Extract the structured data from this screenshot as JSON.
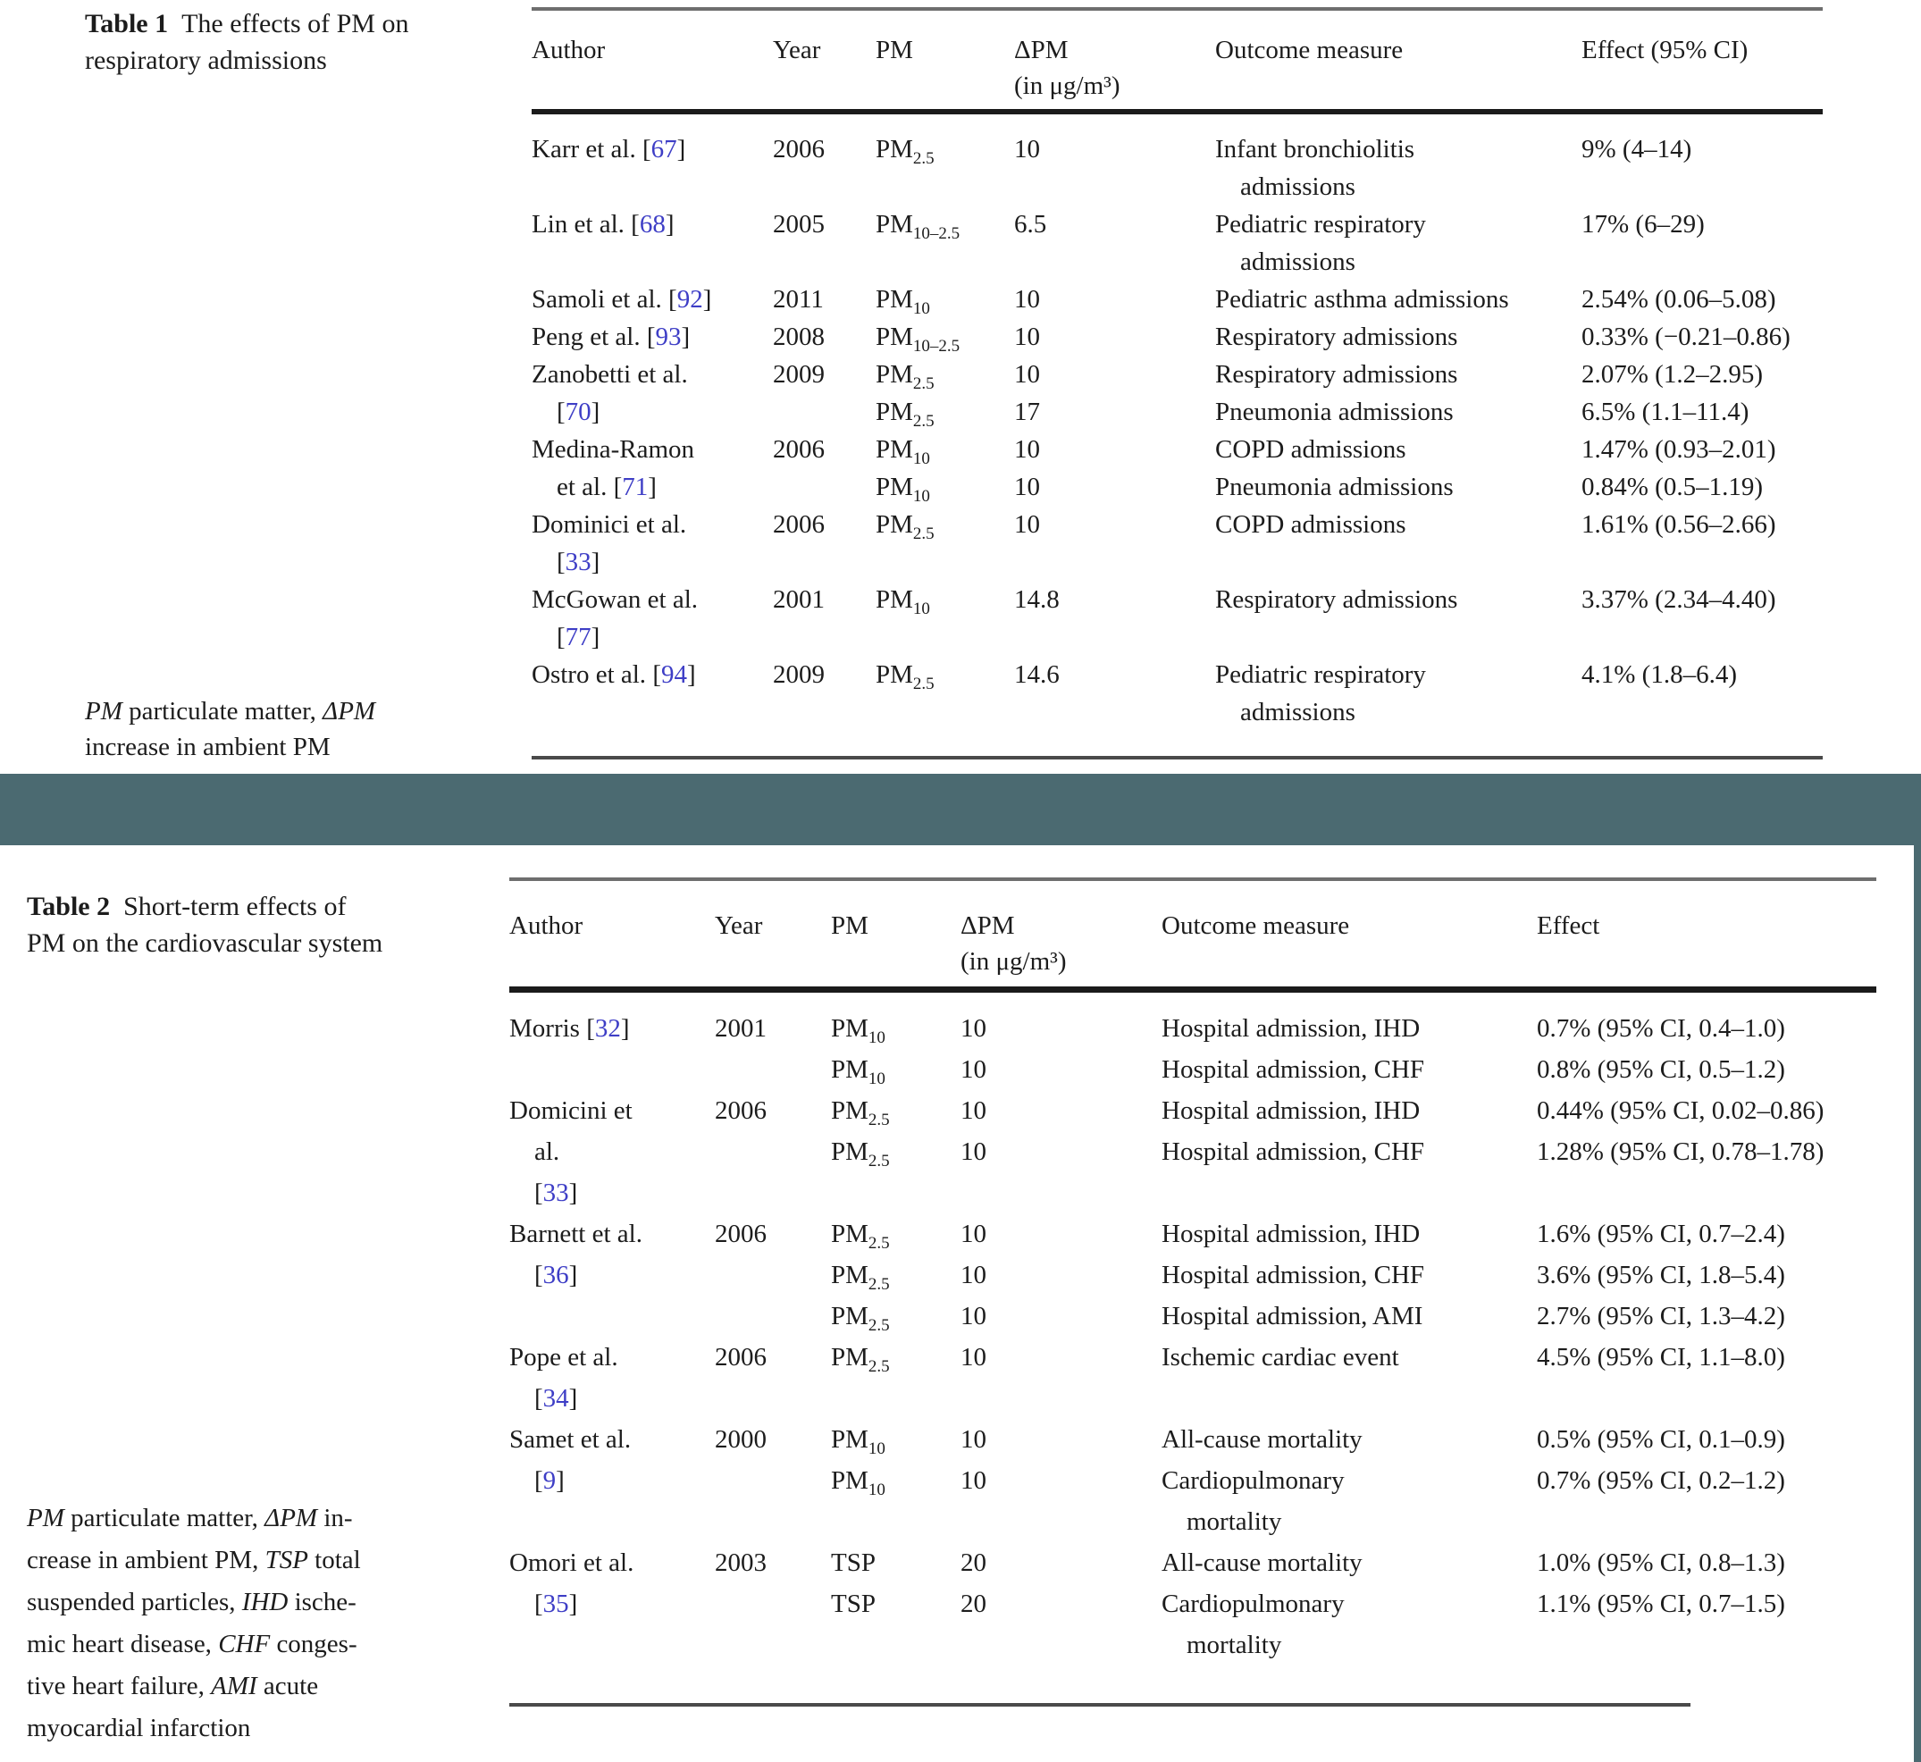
{
  "colors": {
    "accent_teal": "#4b6a71",
    "ref_blue": "#3e3ec6",
    "rule_gray": "#6e6e6e",
    "rule_dark": "#1b1b1b",
    "rule_mid": "#4a4a4a"
  },
  "table1": {
    "caption": {
      "label": "Table 1",
      "lines": [
        "The effects of PM on",
        "respiratory admissions"
      ]
    },
    "header": {
      "author": "Author",
      "year": "Year",
      "pm": "PM",
      "dpm_line1": "ΔPM",
      "dpm_line2": "(in μg/m³)",
      "outcome": "Outcome measure",
      "effect": "Effect (95% CI)"
    },
    "rows": [
      [
        {
          "t": "Karr et al. ",
          "ref": "67"
        },
        {
          "t": "2006"
        },
        {
          "t": "PM",
          "sub": "2.5"
        },
        {
          "t": "10"
        },
        {
          "t": "Infant bronchiolitis"
        },
        {
          "t": "9% (4–14)"
        }
      ],
      [
        null,
        null,
        null,
        null,
        {
          "t": "admissions",
          "ind": 1
        },
        null
      ],
      [
        {
          "t": "Lin et al. ",
          "ref": "68"
        },
        {
          "t": "2005"
        },
        {
          "t": "PM",
          "sub": "10–2.5"
        },
        {
          "t": "6.5"
        },
        {
          "t": "Pediatric respiratory"
        },
        {
          "t": "17% (6–29)"
        }
      ],
      [
        null,
        null,
        null,
        null,
        {
          "t": "admissions",
          "ind": 1
        },
        null
      ],
      [
        {
          "t": "Samoli et al. ",
          "ref": "92"
        },
        {
          "t": "2011"
        },
        {
          "t": "PM",
          "sub": "10"
        },
        {
          "t": "10"
        },
        {
          "t": "Pediatric asthma admissions"
        },
        {
          "t": "2.54% (0.06–5.08)"
        }
      ],
      [
        {
          "t": "Peng et al. ",
          "ref": "93"
        },
        {
          "t": "2008"
        },
        {
          "t": "PM",
          "sub": "10–2.5"
        },
        {
          "t": "10"
        },
        {
          "t": "Respiratory admissions"
        },
        {
          "t": "0.33% (−0.21–0.86)"
        }
      ],
      [
        {
          "t": "Zanobetti et al."
        },
        {
          "t": "2009"
        },
        {
          "t": "PM",
          "sub": "2.5"
        },
        {
          "t": "10"
        },
        {
          "t": "Respiratory admissions"
        },
        {
          "t": "2.07% (1.2–2.95)"
        }
      ],
      [
        {
          "ref": "70",
          "ind": 1
        },
        null,
        {
          "t": "PM",
          "sub": "2.5"
        },
        {
          "t": "17"
        },
        {
          "t": "Pneumonia admissions"
        },
        {
          "t": "6.5% (1.1–11.4)"
        }
      ],
      [
        {
          "t": "Medina-Ramon"
        },
        {
          "t": "2006"
        },
        {
          "t": "PM",
          "sub": "10"
        },
        {
          "t": "10"
        },
        {
          "t": "COPD admissions"
        },
        {
          "t": "1.47% (0.93–2.01)"
        }
      ],
      [
        {
          "t": "et al. ",
          "ref": "71",
          "ind": 1
        },
        null,
        {
          "t": "PM",
          "sub": "10"
        },
        {
          "t": "10"
        },
        {
          "t": "Pneumonia admissions"
        },
        {
          "t": "0.84% (0.5–1.19)"
        }
      ],
      [
        {
          "t": "Dominici et al."
        },
        {
          "t": "2006"
        },
        {
          "t": "PM",
          "sub": "2.5"
        },
        {
          "t": "10"
        },
        {
          "t": "COPD admissions"
        },
        {
          "t": "1.61% (0.56–2.66)"
        }
      ],
      [
        {
          "ref": "33",
          "ind": 1
        },
        null,
        null,
        null,
        null,
        null
      ],
      [
        {
          "t": "McGowan et al."
        },
        {
          "t": "2001"
        },
        {
          "t": "PM",
          "sub": "10"
        },
        {
          "t": "14.8"
        },
        {
          "t": "Respiratory admissions"
        },
        {
          "t": "3.37% (2.34–4.40)"
        }
      ],
      [
        {
          "ref": "77",
          "ind": 1
        },
        null,
        null,
        null,
        null,
        null
      ],
      [
        {
          "t": "Ostro et al. ",
          "ref": "94"
        },
        {
          "t": "2009"
        },
        {
          "t": "PM",
          "sub": "2.5"
        },
        {
          "t": "14.6"
        },
        {
          "t": "Pediatric respiratory"
        },
        {
          "t": "4.1% (1.8–6.4)"
        }
      ],
      [
        null,
        null,
        null,
        null,
        {
          "t": "admissions",
          "ind": 1
        },
        null
      ]
    ],
    "footnote_lines": [
      [
        {
          "i": 1,
          "t": "PM"
        },
        {
          "t": " particulate matter, "
        },
        {
          "i": 1,
          "t": "ΔPM"
        }
      ],
      [
        {
          "t": "increase in ambient PM"
        }
      ]
    ]
  },
  "table2": {
    "caption": {
      "label": "Table 2",
      "lines": [
        "Short-term effects of",
        "PM on the cardiovascular system"
      ]
    },
    "header": {
      "author": "Author",
      "year": "Year",
      "pm": "PM",
      "dpm_line1": "ΔPM",
      "dpm_line2": "(in μg/m³)",
      "outcome": "Outcome measure",
      "effect": "Effect"
    },
    "rows": [
      [
        {
          "t": "Morris ",
          "ref": "32"
        },
        {
          "t": "2001"
        },
        {
          "t": "PM",
          "sub": "10"
        },
        {
          "t": "10"
        },
        {
          "t": "Hospital admission, IHD"
        },
        {
          "t": "0.7% (95% CI, 0.4–1.0)"
        }
      ],
      [
        null,
        null,
        {
          "t": "PM",
          "sub": "10"
        },
        {
          "t": "10"
        },
        {
          "t": "Hospital admission, CHF"
        },
        {
          "t": "0.8% (95% CI, 0.5–1.2)"
        }
      ],
      [
        {
          "t": "Domicini et"
        },
        {
          "t": "2006"
        },
        {
          "t": "PM",
          "sub": "2.5"
        },
        {
          "t": "10"
        },
        {
          "t": "Hospital admission, IHD"
        },
        {
          "t": "0.44% (95% CI, 0.02–0.86)"
        }
      ],
      [
        {
          "t": "al.",
          "ind": 1
        },
        null,
        {
          "t": "PM",
          "sub": "2.5"
        },
        {
          "t": "10"
        },
        {
          "t": "Hospital admission, CHF"
        },
        {
          "t": "1.28% (95% CI, 0.78–1.78)"
        }
      ],
      [
        {
          "ref": "33",
          "ind": 1
        },
        null,
        null,
        null,
        null,
        null
      ],
      [
        {
          "t": "Barnett et al."
        },
        {
          "t": "2006"
        },
        {
          "t": "PM",
          "sub": "2.5"
        },
        {
          "t": "10"
        },
        {
          "t": "Hospital admission, IHD"
        },
        {
          "t": "1.6% (95% CI, 0.7–2.4)"
        }
      ],
      [
        {
          "ref": "36",
          "ind": 1
        },
        null,
        {
          "t": "PM",
          "sub": "2.5"
        },
        {
          "t": "10"
        },
        {
          "t": "Hospital admission, CHF"
        },
        {
          "t": "3.6% (95% CI, 1.8–5.4)"
        }
      ],
      [
        null,
        null,
        {
          "t": "PM",
          "sub": "2.5"
        },
        {
          "t": "10"
        },
        {
          "t": "Hospital admission, AMI"
        },
        {
          "t": "2.7% (95% CI, 1.3–4.2)"
        }
      ],
      [
        {
          "t": "Pope et al."
        },
        {
          "t": "2006"
        },
        {
          "t": "PM",
          "sub": "2.5"
        },
        {
          "t": "10"
        },
        {
          "t": "Ischemic cardiac event"
        },
        {
          "t": "4.5% (95% CI, 1.1–8.0)"
        }
      ],
      [
        {
          "ref": "34",
          "ind": 1
        },
        null,
        null,
        null,
        null,
        null
      ],
      [
        {
          "t": "Samet et al."
        },
        {
          "t": "2000"
        },
        {
          "t": "PM",
          "sub": "10"
        },
        {
          "t": "10"
        },
        {
          "t": "All-cause mortality"
        },
        {
          "t": "0.5% (95% CI, 0.1–0.9)"
        }
      ],
      [
        {
          "ref": "9",
          "ind": 1
        },
        null,
        {
          "t": "PM",
          "sub": "10"
        },
        {
          "t": "10"
        },
        {
          "t": "Cardiopulmonary"
        },
        {
          "t": "0.7% (95% CI, 0.2–1.2)"
        }
      ],
      [
        null,
        null,
        null,
        null,
        {
          "t": "mortality",
          "ind": 1
        },
        null
      ],
      [
        {
          "t": "Omori et al."
        },
        {
          "t": "2003"
        },
        {
          "t": "TSP"
        },
        {
          "t": "20"
        },
        {
          "t": "All-cause mortality"
        },
        {
          "t": "1.0% (95% CI, 0.8–1.3)"
        }
      ],
      [
        {
          "ref": "35",
          "ind": 1
        },
        null,
        {
          "t": "TSP"
        },
        {
          "t": "20"
        },
        {
          "t": "Cardiopulmonary"
        },
        {
          "t": "1.1% (95% CI, 0.7–1.5)"
        }
      ],
      [
        null,
        null,
        null,
        null,
        {
          "t": "mortality",
          "ind": 1
        },
        null
      ]
    ],
    "footnote_lines": [
      [
        {
          "i": 1,
          "t": "PM"
        },
        {
          "t": " particulate matter, "
        },
        {
          "i": 1,
          "t": "ΔPM"
        },
        {
          "t": " in-"
        }
      ],
      [
        {
          "t": "crease in ambient PM, "
        },
        {
          "i": 1,
          "t": "TSP"
        },
        {
          "t": " total"
        }
      ],
      [
        {
          "t": "suspended particles, "
        },
        {
          "i": 1,
          "t": "IHD"
        },
        {
          "t": " ische-"
        }
      ],
      [
        {
          "t": "mic heart disease, "
        },
        {
          "i": 1,
          "t": "CHF"
        },
        {
          "t": " conges-"
        }
      ],
      [
        {
          "t": "tive heart failure, "
        },
        {
          "i": 1,
          "t": "AMI"
        },
        {
          "t": " acute"
        }
      ],
      [
        {
          "t": "myocardial infarction"
        }
      ]
    ]
  }
}
